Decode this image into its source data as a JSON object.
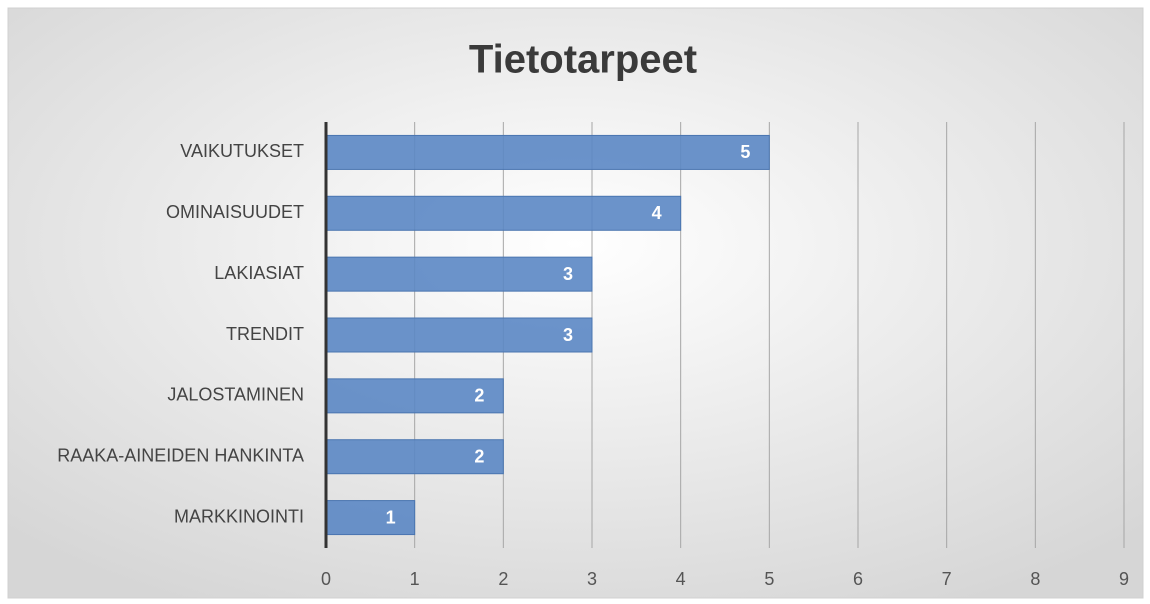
{
  "chart_data": {
    "type": "bar",
    "orientation": "horizontal",
    "title": "Tietotarpeet",
    "categories": [
      "VAIKUTUKSET",
      "OMINAISUUDET",
      "LAKIASIAT",
      "TRENDIT",
      "JALOSTAMINEN",
      "RAAKA-AINEIDEN HANKINTA",
      "MARKKINOINTI"
    ],
    "values": [
      5,
      4,
      3,
      3,
      2,
      2,
      1
    ],
    "color": "#5b87c4",
    "xlim": [
      0,
      9
    ],
    "xticks": [
      0,
      1,
      2,
      3,
      4,
      5,
      6,
      7,
      8,
      9
    ],
    "grid": true
  }
}
